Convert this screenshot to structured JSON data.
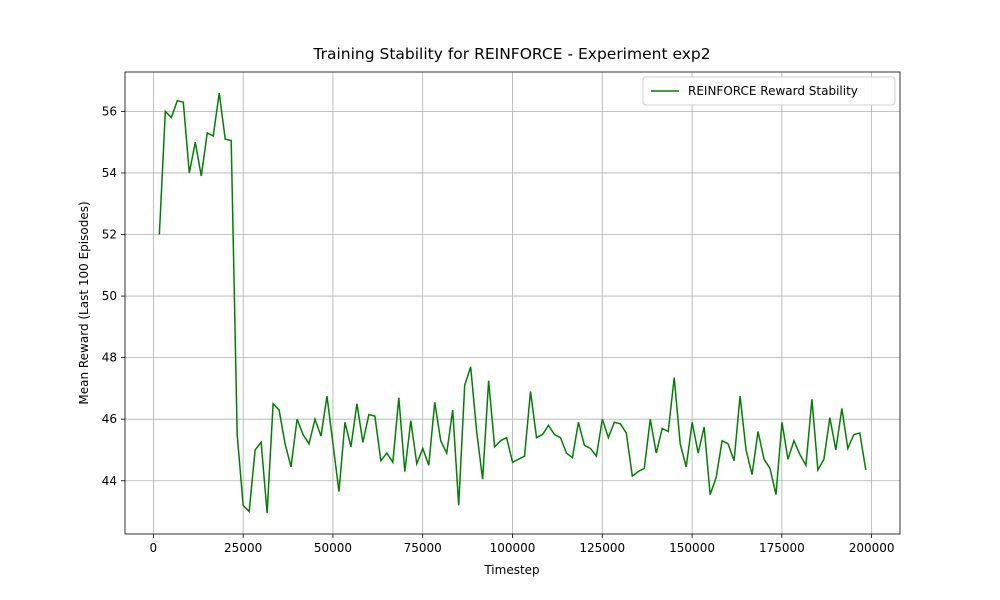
{
  "chart_data": {
    "type": "line",
    "title": "Training Stability for REINFORCE - Experiment exp2",
    "x_label": "Timestep",
    "y_label": "Mean Reward (Last 100 Episodes)",
    "x": [
      1667,
      3334,
      5001,
      6668,
      8335,
      10002,
      11669,
      13336,
      15003,
      16670,
      18337,
      20004,
      21671,
      23338,
      25005,
      26672,
      28339,
      30006,
      31673,
      33340,
      35007,
      36674,
      38341,
      40008,
      41675,
      43342,
      45009,
      46676,
      48343,
      50010,
      51677,
      53344,
      55011,
      56678,
      58345,
      60012,
      61679,
      63346,
      65013,
      66680,
      68347,
      70014,
      71681,
      73348,
      75015,
      76682,
      78349,
      80016,
      81683,
      83350,
      85017,
      86684,
      88351,
      90018,
      91685,
      93352,
      95019,
      96686,
      98353,
      100020,
      101687,
      103354,
      105021,
      106688,
      108355,
      110022,
      111689,
      113356,
      115023,
      116690,
      118357,
      120024,
      121691,
      123358,
      125025,
      126692,
      128359,
      130026,
      131693,
      133360,
      135027,
      136694,
      138361,
      140028,
      141695,
      143362,
      145029,
      146696,
      148363,
      150030,
      151697,
      153364,
      155031,
      156698,
      158365,
      160032,
      161699,
      163366,
      165033,
      166700,
      168367,
      170034,
      171701,
      173368,
      175035,
      176702,
      178369,
      180036,
      181703,
      183370,
      185037,
      186704,
      188371,
      190038,
      191705,
      193372,
      195039,
      196706,
      198373
    ],
    "series": [
      {
        "name": "REINFORCE Reward Stability",
        "color": "#008000",
        "values": [
          52.0,
          56.0,
          55.8,
          56.35,
          56.3,
          54.0,
          55.0,
          53.9,
          55.3,
          55.2,
          56.6,
          55.1,
          55.05,
          45.5,
          43.2,
          43.0,
          45.0,
          45.25,
          42.95,
          46.5,
          46.3,
          45.2,
          44.45,
          46.0,
          45.5,
          45.2,
          46.0,
          45.45,
          46.75,
          45.2,
          43.65,
          45.9,
          45.1,
          46.5,
          45.25,
          46.15,
          46.1,
          44.65,
          44.9,
          44.6,
          46.7,
          44.3,
          45.95,
          44.55,
          45.05,
          44.5,
          46.55,
          45.3,
          44.9,
          46.3,
          43.2,
          47.1,
          47.7,
          45.6,
          44.05,
          47.25,
          45.1,
          45.3,
          45.4,
          44.6,
          44.7,
          44.8,
          46.9,
          45.4,
          45.5,
          45.8,
          45.5,
          45.4,
          44.9,
          44.75,
          45.9,
          45.15,
          45.05,
          44.8,
          46.0,
          45.4,
          45.9,
          45.85,
          45.55,
          44.15,
          44.3,
          44.4,
          46.0,
          44.9,
          45.7,
          45.6,
          47.35,
          45.2,
          44.45,
          45.9,
          44.9,
          45.75,
          43.55,
          44.1,
          45.3,
          45.2,
          44.65,
          46.75,
          45.0,
          44.2,
          45.6,
          44.7,
          44.4,
          43.55,
          45.9,
          44.7,
          45.3,
          44.85,
          44.5,
          46.65,
          44.35,
          44.7,
          46.05,
          45.0,
          46.35,
          45.05,
          45.5,
          45.55,
          44.35
        ]
      }
    ],
    "xlim": [
      -7900,
      207900
    ],
    "ylim": [
      42.27,
      57.28
    ],
    "xticks": [
      0,
      25000,
      50000,
      75000,
      100000,
      125000,
      150000,
      175000,
      200000
    ],
    "yticks": [
      44,
      46,
      48,
      50,
      52,
      54,
      56
    ],
    "grid": true,
    "legend": "upper right"
  }
}
